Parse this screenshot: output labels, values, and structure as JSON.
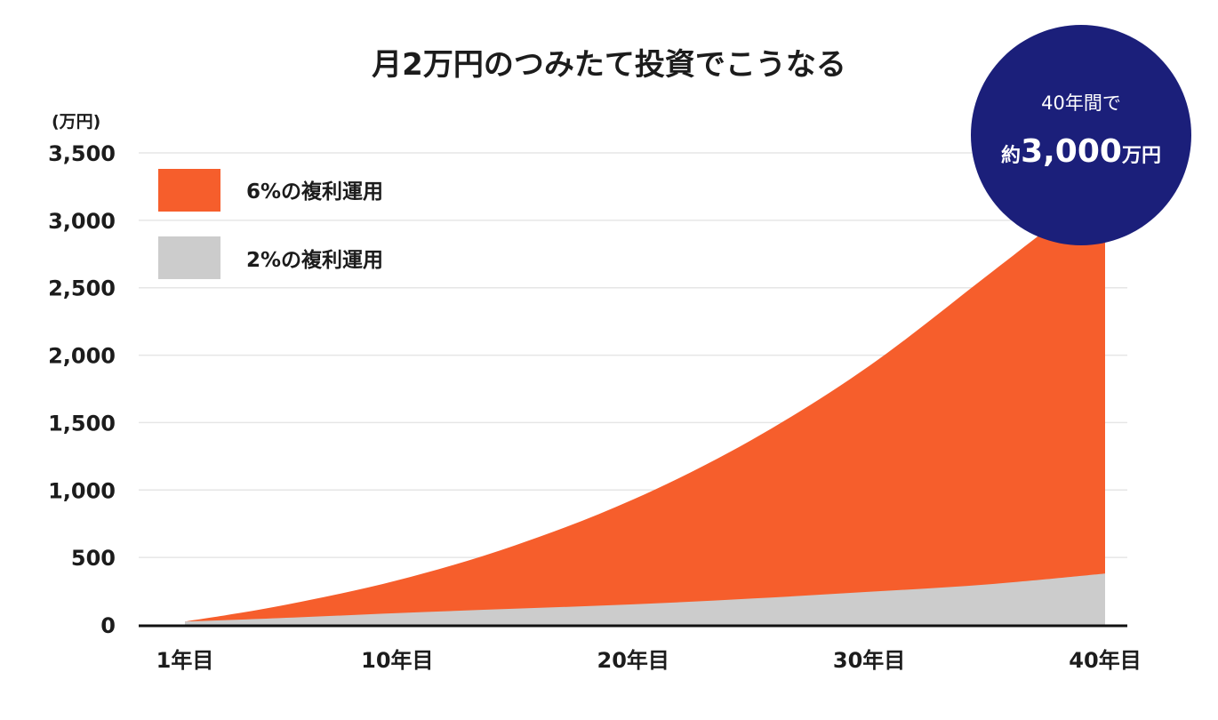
{
  "chart_data": {
    "type": "area",
    "title": "月2万円のつみたて投資でこうなる",
    "ylabel": "(万円)",
    "xlabel": "",
    "ylim": [
      0,
      3500
    ],
    "yticks": [
      0,
      500,
      1000,
      1500,
      2000,
      2500,
      3000,
      3500
    ],
    "ytick_labels": [
      "0",
      "500",
      "1,000",
      "1,500",
      "2,000",
      "2,500",
      "3,000",
      "3,500"
    ],
    "x_ticks": [
      1,
      10,
      20,
      30,
      40
    ],
    "x_tick_labels": [
      "1年目",
      "10年目",
      "20年目",
      "30年目",
      "40年目"
    ],
    "x": [
      1,
      5,
      10,
      15,
      20,
      25,
      30,
      35,
      40
    ],
    "series": [
      {
        "name": "6%の複利運用",
        "color": "#f65e2c",
        "values": [
          25,
          140,
          330,
          590,
          930,
          1370,
          1920,
          2590,
          3270
        ]
      },
      {
        "name": "2%の複利運用",
        "color": "#cccccc",
        "values": [
          25,
          50,
          87,
          120,
          152,
          195,
          245,
          300,
          380
        ]
      }
    ],
    "grid": true,
    "legend": "top-left",
    "annotation": {
      "line1": "40年間で",
      "prefix": "約",
      "value": "3,000",
      "suffix": "万円",
      "color": "#1b1f7a"
    }
  }
}
